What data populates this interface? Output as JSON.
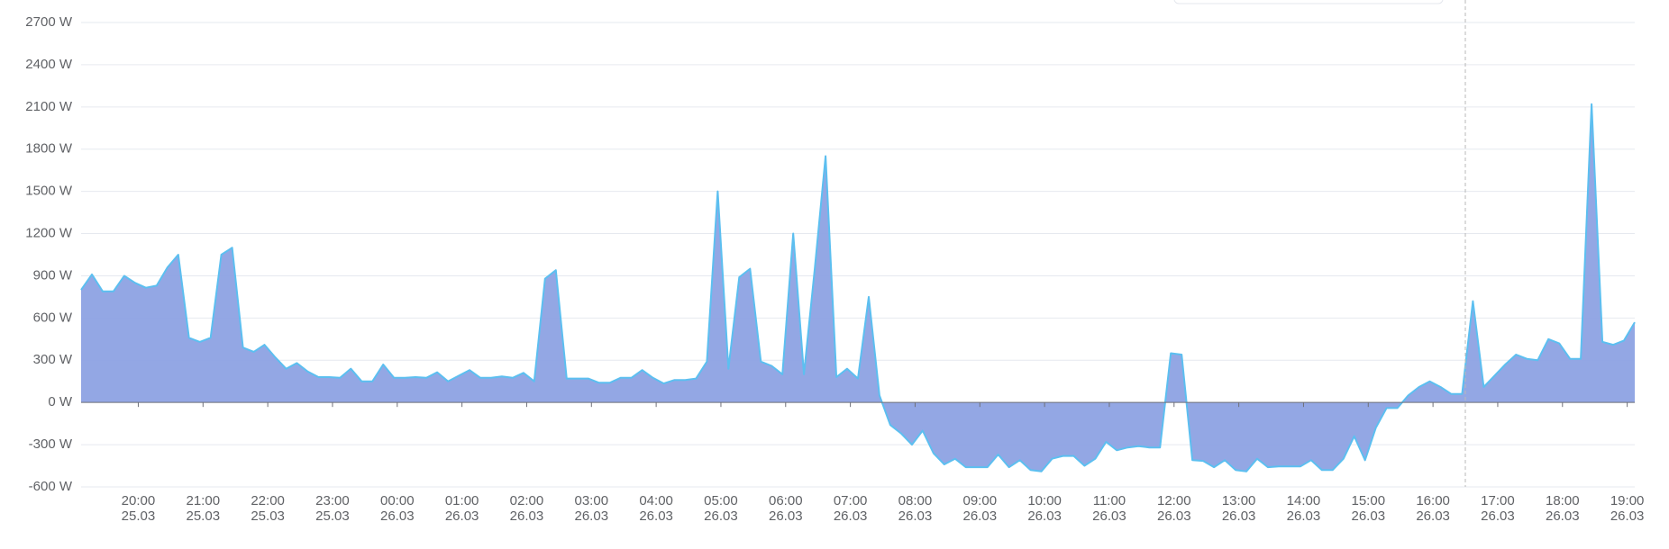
{
  "chart_data": {
    "type": "area",
    "color": "#8da2e3",
    "line_color": "#5cbff0",
    "grid": true,
    "ylim": [
      -600,
      2700
    ],
    "yticks": [
      {
        "value": -600,
        "label": "-600 W"
      },
      {
        "value": -300,
        "label": "-300 W"
      },
      {
        "value": 0,
        "label": "0 W"
      },
      {
        "value": 300,
        "label": "300 W"
      },
      {
        "value": 600,
        "label": "600 W"
      },
      {
        "value": 900,
        "label": "900 W"
      },
      {
        "value": 1200,
        "label": "1200 W"
      },
      {
        "value": 1500,
        "label": "1500 W"
      },
      {
        "value": 1800,
        "label": "1800 W"
      },
      {
        "value": 2100,
        "label": "2100 W"
      },
      {
        "value": 2400,
        "label": "2400 W"
      },
      {
        "value": 2700,
        "label": "2700 W"
      }
    ],
    "xticks": [
      {
        "value": "25.03 20:00",
        "label": [
          "20:00",
          "25.03"
        ]
      },
      {
        "value": "25.03 21:00",
        "label": [
          "21:00",
          "25.03"
        ]
      },
      {
        "value": "25.03 22:00",
        "label": [
          "22:00",
          "25.03"
        ]
      },
      {
        "value": "25.03 23:00",
        "label": [
          "23:00",
          "25.03"
        ]
      },
      {
        "value": "26.03 00:00",
        "label": [
          "00:00",
          "26.03"
        ]
      },
      {
        "value": "26.03 01:00",
        "label": [
          "01:00",
          "26.03"
        ]
      },
      {
        "value": "26.03 02:00",
        "label": [
          "02:00",
          "26.03"
        ]
      },
      {
        "value": "26.03 03:00",
        "label": [
          "03:00",
          "26.03"
        ]
      },
      {
        "value": "26.03 04:00",
        "label": [
          "04:00",
          "26.03"
        ]
      },
      {
        "value": "26.03 05:00",
        "label": [
          "05:00",
          "26.03"
        ]
      },
      {
        "value": "26.03 06:00",
        "label": [
          "06:00",
          "26.03"
        ]
      },
      {
        "value": "26.03 07:00",
        "label": [
          "07:00",
          "26.03"
        ]
      },
      {
        "value": "26.03 08:00",
        "label": [
          "08:00",
          "26.03"
        ]
      },
      {
        "value": "26.03 09:00",
        "label": [
          "09:00",
          "26.03"
        ]
      },
      {
        "value": "26.03 10:00",
        "label": [
          "10:00",
          "26.03"
        ]
      },
      {
        "value": "26.03 11:00",
        "label": [
          "11:00",
          "26.03"
        ]
      },
      {
        "value": "26.03 12:00",
        "label": [
          "12:00",
          "26.03"
        ]
      },
      {
        "value": "26.03 13:00",
        "label": [
          "13:00",
          "26.03"
        ]
      },
      {
        "value": "26.03 14:00",
        "label": [
          "14:00",
          "26.03"
        ]
      },
      {
        "value": "26.03 15:00",
        "label": [
          "15:00",
          "26.03"
        ]
      },
      {
        "value": "26.03 16:00",
        "label": [
          "16:00",
          "26.03"
        ]
      },
      {
        "value": "26.03 17:00",
        "label": [
          "17:00",
          "26.03"
        ]
      },
      {
        "value": "26.03 18:00",
        "label": [
          "18:00",
          "26.03"
        ]
      },
      {
        "value": "26.03 19:00",
        "label": [
          "19:00",
          "26.03"
        ]
      }
    ],
    "x": [
      "25.03 19:07",
      "25.03 19:17",
      "25.03 19:27",
      "25.03 19:37",
      "25.03 19:47",
      "25.03 19:57",
      "25.03 20:07",
      "25.03 20:17",
      "25.03 20:27",
      "25.03 20:37",
      "25.03 20:47",
      "25.03 20:57",
      "25.03 21:07",
      "25.03 21:17",
      "25.03 21:27",
      "25.03 21:37",
      "25.03 21:47",
      "25.03 21:57",
      "25.03 22:07",
      "25.03 22:17",
      "25.03 22:27",
      "25.03 22:37",
      "25.03 22:47",
      "25.03 22:57",
      "25.03 23:07",
      "25.03 23:17",
      "25.03 23:27",
      "25.03 23:37",
      "25.03 23:47",
      "25.03 23:57",
      "26.03 00:07",
      "26.03 00:17",
      "26.03 00:27",
      "26.03 00:37",
      "26.03 00:47",
      "26.03 00:57",
      "26.03 01:07",
      "26.03 01:17",
      "26.03 01:27",
      "26.03 01:37",
      "26.03 01:47",
      "26.03 01:57",
      "26.03 02:07",
      "26.03 02:17",
      "26.03 02:27",
      "26.03 02:37",
      "26.03 02:47",
      "26.03 02:57",
      "26.03 03:07",
      "26.03 03:17",
      "26.03 03:27",
      "26.03 03:37",
      "26.03 03:47",
      "26.03 03:57",
      "26.03 04:07",
      "26.03 04:17",
      "26.03 04:27",
      "26.03 04:37",
      "26.03 04:47",
      "26.03 04:57",
      "26.03 05:07",
      "26.03 05:17",
      "26.03 05:27",
      "26.03 05:37",
      "26.03 05:47",
      "26.03 05:57",
      "26.03 06:07",
      "26.03 06:17",
      "26.03 06:27",
      "26.03 06:37",
      "26.03 06:47",
      "26.03 06:57",
      "26.03 07:07",
      "26.03 07:17",
      "26.03 07:27",
      "26.03 07:37",
      "26.03 07:47",
      "26.03 07:57",
      "26.03 08:07",
      "26.03 08:17",
      "26.03 08:27",
      "26.03 08:37",
      "26.03 08:47",
      "26.03 08:57",
      "26.03 09:07",
      "26.03 09:17",
      "26.03 09:27",
      "26.03 09:37",
      "26.03 09:47",
      "26.03 09:57",
      "26.03 10:07",
      "26.03 10:17",
      "26.03 10:27",
      "26.03 10:37",
      "26.03 10:47",
      "26.03 10:57",
      "26.03 11:07",
      "26.03 11:17",
      "26.03 11:27",
      "26.03 11:37",
      "26.03 11:47",
      "26.03 11:57",
      "26.03 12:07",
      "26.03 12:17",
      "26.03 12:27",
      "26.03 12:37",
      "26.03 12:47",
      "26.03 12:57",
      "26.03 13:07",
      "26.03 13:17",
      "26.03 13:27",
      "26.03 13:37",
      "26.03 13:47",
      "26.03 13:57",
      "26.03 14:07",
      "26.03 14:17",
      "26.03 14:27",
      "26.03 14:37",
      "26.03 14:47",
      "26.03 14:57",
      "26.03 15:07",
      "26.03 15:17",
      "26.03 15:27",
      "26.03 15:37",
      "26.03 15:47",
      "26.03 15:57",
      "26.03 16:07",
      "26.03 16:17",
      "26.03 16:27",
      "26.03 16:37",
      "26.03 16:47",
      "26.03 16:57",
      "26.03 17:07",
      "26.03 17:17",
      "26.03 17:27",
      "26.03 17:37",
      "26.03 17:47",
      "26.03 17:57",
      "26.03 18:07",
      "26.03 18:17",
      "26.03 18:27",
      "26.03 18:37",
      "26.03 18:47",
      "26.03 18:57",
      "26.03 19:07"
    ],
    "values": [
      800,
      910,
      790,
      790,
      900,
      850,
      815,
      830,
      960,
      1050,
      460,
      430,
      460,
      1050,
      1100,
      390,
      360,
      410,
      320,
      240,
      280,
      220,
      180,
      180,
      175,
      240,
      150,
      150,
      270,
      175,
      175,
      180,
      175,
      215,
      150,
      190,
      230,
      175,
      175,
      185,
      175,
      210,
      150,
      880,
      940,
      170,
      170,
      170,
      140,
      140,
      175,
      175,
      230,
      175,
      135,
      160,
      160,
      170,
      290,
      1500,
      240,
      890,
      950,
      290,
      260,
      200,
      1200,
      200,
      950,
      1750,
      180,
      240,
      170,
      750,
      50,
      -160,
      -220,
      -300,
      -200,
      -360,
      -440,
      -400,
      -460,
      -460,
      -460,
      -370,
      -460,
      -410,
      -480,
      -490,
      -400,
      -380,
      -380,
      -450,
      -400,
      -280,
      -340,
      -320,
      -310,
      -320,
      -320,
      350,
      340,
      -410,
      -415,
      -460,
      -410,
      -480,
      -490,
      -400,
      -460,
      -455,
      -455,
      -455,
      -410,
      -480,
      -480,
      -400,
      -240,
      -410,
      -180,
      -40,
      -40,
      50,
      110,
      150,
      110,
      60,
      60,
      720,
      110,
      190,
      270,
      340,
      310,
      300,
      450,
      420,
      310,
      310,
      2120,
      430,
      410,
      440,
      570
    ]
  }
}
